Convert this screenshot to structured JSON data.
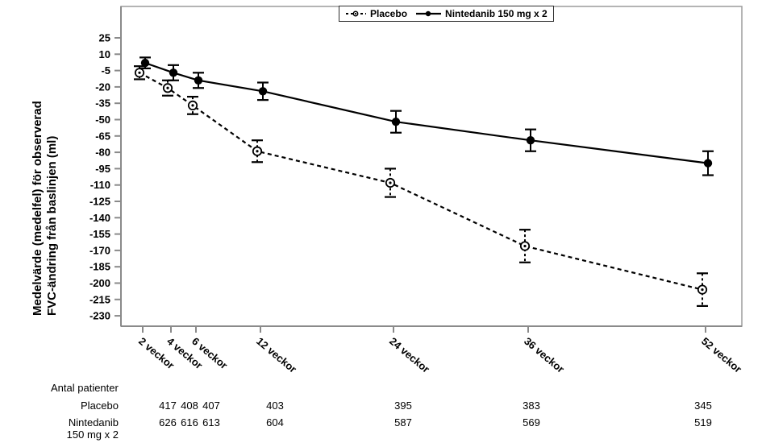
{
  "legend": {
    "items": [
      {
        "label": "Placebo",
        "line_style": "dashed",
        "marker": "open-circle"
      },
      {
        "label": "Nintedanib 150 mg x 2",
        "line_style": "solid",
        "marker": "filled-circle"
      }
    ]
  },
  "y_axis": {
    "title_line1": "Medelvärde (medelfel) för observerad",
    "title_line2": "FVC-ändring från baslinjen (ml)",
    "ticks": [
      25,
      10,
      -5,
      -20,
      -35,
      -50,
      -65,
      -80,
      -95,
      -110,
      -125,
      -140,
      -155,
      -170,
      -185,
      -200,
      -215,
      -230
    ]
  },
  "x_axis": {
    "tick_labels": [
      "2 veckor",
      "4 veckor",
      "6 veckor",
      "12 veckor",
      "24 veckor",
      "36 veckor",
      "52 veckor"
    ]
  },
  "chart_data": {
    "type": "line",
    "title": "",
    "x": [
      2,
      4,
      6,
      12,
      24,
      36,
      52
    ],
    "x_unit": "veckor",
    "ylabel": "Medelvärde (medelfel) för observerad FVC-ändring från baslinjen (ml)",
    "ylim": [
      -230,
      25
    ],
    "ytick_step": 15,
    "grid": false,
    "legend_position": "top-center",
    "series": [
      {
        "name": "Placebo",
        "line": "dashed",
        "marker": "open-circle",
        "values": [
          -7,
          -21,
          -37,
          -79,
          -108,
          -166,
          -206
        ],
        "sem": [
          6,
          7,
          8,
          10,
          13,
          15,
          15
        ]
      },
      {
        "name": "Nintedanib 150 mg x 2",
        "line": "solid",
        "marker": "filled-circle",
        "values": [
          2,
          -7,
          -14,
          -24,
          -52,
          -69,
          -90
        ],
        "sem": [
          5,
          7,
          7,
          8,
          10,
          10,
          11
        ]
      }
    ]
  },
  "table": {
    "header": "Antal patienter",
    "rows": [
      {
        "label_lines": [
          "Placebo"
        ],
        "values": [
          417,
          408,
          407,
          403,
          395,
          383,
          345
        ]
      },
      {
        "label_lines": [
          "Nintedanib",
          "150 mg x 2"
        ],
        "values": [
          626,
          616,
          613,
          604,
          587,
          569,
          519
        ]
      }
    ]
  },
  "colors": {
    "data": "#000000",
    "frame": "#9c9c9c",
    "axis": "#8a8a8a",
    "text": "#000000",
    "background": "#ffffff"
  }
}
